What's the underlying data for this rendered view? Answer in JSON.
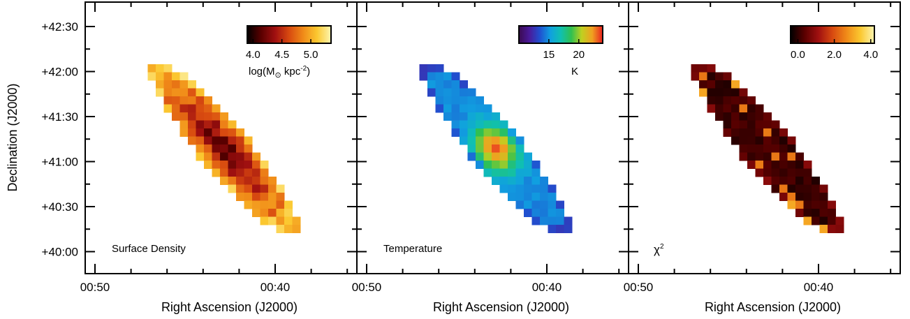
{
  "chart_data": {
    "type": "heatmap",
    "shared_axes": {
      "xlabel": "Right Ascension (J2000)",
      "ylabel": "Declination (J2000)",
      "x_ticklabels": [
        "00:50",
        "00:40"
      ],
      "y_ticklabels": [
        "+42:30",
        "+42:00",
        "+41:30",
        "+41:00",
        "+40:30",
        "+40:00"
      ]
    },
    "panels": [
      {
        "label": "Surface Density",
        "colorbar": {
          "colormap": "heat",
          "colors": [
            "#000000",
            "#5a0000",
            "#a01010",
            "#d84a10",
            "#f08a18",
            "#fbc830",
            "#fdf5b0"
          ],
          "range": [
            3.9,
            5.35
          ],
          "ticks": [
            {
              "value": 4.0,
              "label": "4.0"
            },
            {
              "value": 4.5,
              "label": "4.5"
            },
            {
              "value": 5.0,
              "label": "5.0"
            }
          ],
          "label_main": "log(M",
          "label_sub": "⊙",
          "label_mid": " kpc",
          "label_sup": "-2",
          "label_end": ")"
        }
      },
      {
        "label": "Temperature",
        "colorbar": {
          "colormap": "rainbow",
          "colors": [
            "#3a0a50",
            "#4a1a9a",
            "#2050d0",
            "#10a0e0",
            "#10c0b0",
            "#30c050",
            "#c0d020",
            "#f0a020",
            "#e82020"
          ],
          "range": [
            10,
            24
          ],
          "ticks": [
            {
              "value": 15,
              "label": "15"
            },
            {
              "value": 20,
              "label": "20"
            }
          ],
          "label_main": "K"
        }
      },
      {
        "label_main": "χ",
        "label_sup": "2",
        "colorbar": {
          "colormap": "heat",
          "colors": [
            "#000000",
            "#5a0000",
            "#a01010",
            "#d84a10",
            "#f08a18",
            "#fbc830",
            "#fdf5b0"
          ],
          "range": [
            -0.4,
            4.2
          ],
          "ticks": [
            {
              "value": 0.0,
              "label": "0.0"
            },
            {
              "value": 2.0,
              "label": "2.0"
            },
            {
              "value": 4.0,
              "label": "4.0"
            }
          ]
        }
      }
    ]
  }
}
